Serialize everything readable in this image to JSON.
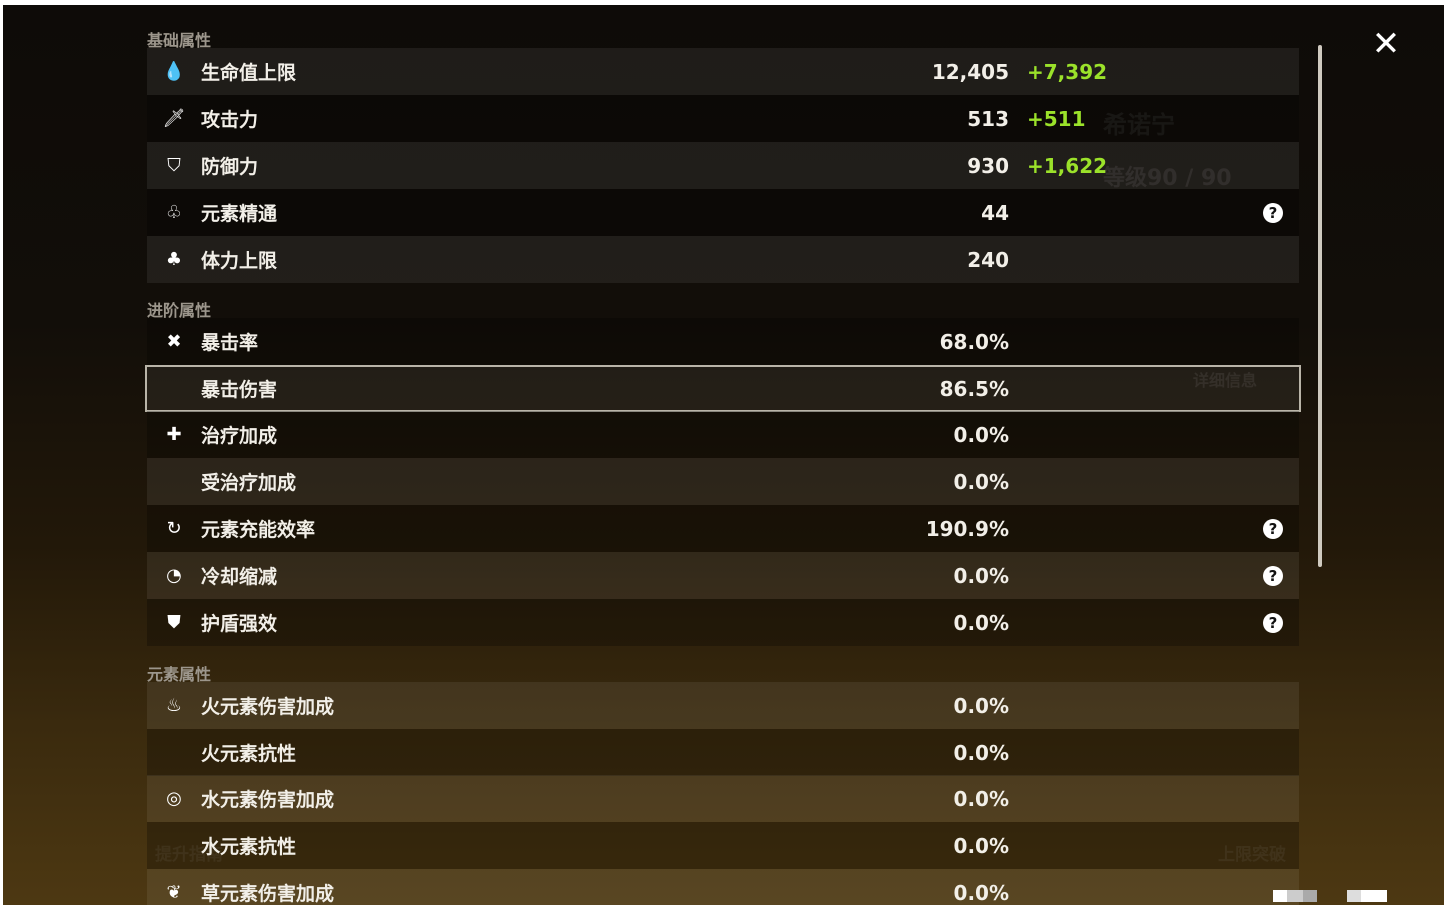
{
  "background": {
    "character_name": "希诺宁",
    "level": "等级90 / 90",
    "detail_button": "详细信息",
    "guide_button": "提升指南",
    "ascend_button": "上限突破"
  },
  "close_label": "✕",
  "sections": [
    {
      "title": "基础属性",
      "rows": [
        {
          "icon": "hp-drop-icon",
          "glyph": "💧",
          "label": "生命值上限",
          "value": "12,405",
          "bonus": "+7,392",
          "help": false
        },
        {
          "icon": "sword-icon",
          "glyph": "🗡",
          "label": "攻击力",
          "value": "513",
          "bonus": "+511",
          "help": false
        },
        {
          "icon": "shield-icon",
          "glyph": "⛉",
          "label": "防御力",
          "value": "930",
          "bonus": "+1,622",
          "help": false
        },
        {
          "icon": "elemental-mastery-icon",
          "glyph": "♧",
          "label": "元素精通",
          "value": "44",
          "bonus": "",
          "help": true
        },
        {
          "icon": "stamina-icon",
          "glyph": "♣",
          "label": "体力上限",
          "value": "240",
          "bonus": "",
          "help": false
        }
      ]
    },
    {
      "title": "进阶属性",
      "rows": [
        {
          "icon": "crit-rate-icon",
          "glyph": "✖",
          "label": "暴击率",
          "value": "68.0%",
          "bonus": "",
          "help": false
        },
        {
          "icon": "",
          "glyph": "",
          "label": "暴击伤害",
          "value": "86.5%",
          "bonus": "",
          "help": false,
          "selected": true
        },
        {
          "icon": "healing-cross-icon",
          "glyph": "✚",
          "label": "治疗加成",
          "value": "0.0%",
          "bonus": "",
          "help": false
        },
        {
          "icon": "",
          "glyph": "",
          "label": "受治疗加成",
          "value": "0.0%",
          "bonus": "",
          "help": false
        },
        {
          "icon": "energy-recharge-icon",
          "glyph": "↻",
          "label": "元素充能效率",
          "value": "190.9%",
          "bonus": "",
          "help": true
        },
        {
          "icon": "cooldown-icon",
          "glyph": "◔",
          "label": "冷却缩减",
          "value": "0.0%",
          "bonus": "",
          "help": true
        },
        {
          "icon": "shield-strength-icon",
          "glyph": "⛊",
          "label": "护盾强效",
          "value": "0.0%",
          "bonus": "",
          "help": true
        }
      ]
    },
    {
      "title": "元素属性",
      "rows": [
        {
          "icon": "pyro-icon",
          "glyph": "♨",
          "label": "火元素伤害加成",
          "value": "0.0%",
          "bonus": "",
          "help": false
        },
        {
          "icon": "",
          "glyph": "",
          "label": "火元素抗性",
          "value": "0.0%",
          "bonus": "",
          "help": false
        },
        {
          "icon": "hydro-icon",
          "glyph": "◎",
          "label": "水元素伤害加成",
          "value": "0.0%",
          "bonus": "",
          "help": false
        },
        {
          "icon": "",
          "glyph": "",
          "label": "水元素抗性",
          "value": "0.0%",
          "bonus": "",
          "help": false
        },
        {
          "icon": "dendro-icon",
          "glyph": "❦",
          "label": "草元素伤害加成",
          "value": "0.0%",
          "bonus": "",
          "help": false
        }
      ]
    }
  ],
  "help_glyph": "?",
  "colors": {
    "bonus": "#9be22a",
    "text": "#f2efe8",
    "section": "#9c968c"
  }
}
